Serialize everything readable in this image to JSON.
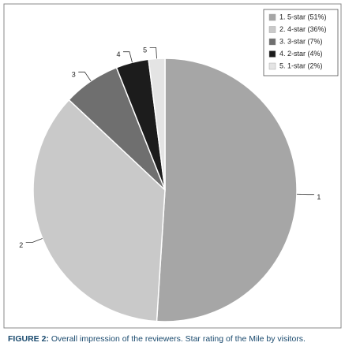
{
  "chart_data": {
    "type": "pie",
    "categories": [
      "1. 5-star (51%)",
      "2. 4-star (36%)",
      "3. 3-star (7%)",
      "4. 2-star (4%)",
      "5. 1-star (2%)"
    ],
    "values": [
      51,
      36,
      7,
      4,
      2
    ],
    "colors": [
      "#a6a6a6",
      "#c9c9c9",
      "#6f6f6f",
      "#1c1c1c",
      "#e4e4e4"
    ],
    "slice_labels": [
      "1",
      "2",
      "3",
      "4",
      "5"
    ],
    "legend": "top-right",
    "caption_prefix": "FIGURE 2:",
    "caption": "Overall impression of the reviewers. Star rating of the Mile by visitors."
  }
}
